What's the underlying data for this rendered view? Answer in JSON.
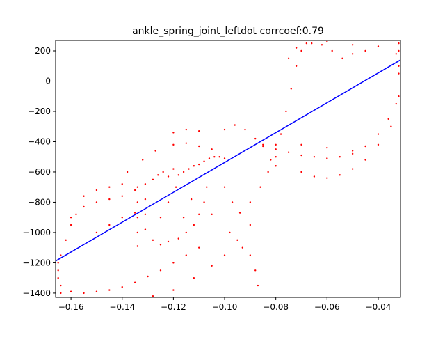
{
  "chart_data": {
    "type": "scatter",
    "title": "ankle_spring_joint_leftdot corrcoef:0.79",
    "xlim": [
      -0.166,
      -0.0313
    ],
    "ylim": [
      -1428,
      269
    ],
    "xticks": [
      {
        "value": -0.16,
        "label": "−0.16"
      },
      {
        "value": -0.14,
        "label": "−0.14"
      },
      {
        "value": -0.12,
        "label": "−0.12"
      },
      {
        "value": -0.1,
        "label": "−0.10"
      },
      {
        "value": -0.08,
        "label": "−0.08"
      },
      {
        "value": -0.06,
        "label": "−0.06"
      },
      {
        "value": -0.04,
        "label": "−0.04"
      }
    ],
    "yticks": [
      200,
      0,
      {
        "value": -200,
        "label": "−200"
      },
      {
        "value": -400,
        "label": "−400"
      },
      {
        "value": -600,
        "label": "−600"
      },
      {
        "value": -800,
        "label": "−800"
      },
      {
        "value": -1000,
        "label": "−1000"
      },
      {
        "value": -1200,
        "label": "−1200"
      },
      {
        "value": -1400,
        "label": "−1400"
      }
    ],
    "points": {
      "color": "#ff0000",
      "x": [
        -0.165,
        -0.165,
        -0.165,
        -0.164,
        -0.164,
        -0.16,
        -0.155,
        -0.15,
        -0.145,
        -0.14,
        -0.135,
        -0.13,
        -0.125,
        -0.12,
        -0.115,
        -0.11,
        -0.128,
        -0.12,
        -0.112,
        -0.105,
        -0.1,
        -0.095,
        -0.09,
        -0.164,
        -0.162,
        -0.16,
        -0.158,
        -0.155,
        -0.15,
        -0.145,
        -0.14,
        -0.135,
        -0.16,
        -0.155,
        -0.15,
        -0.145,
        -0.14,
        -0.15,
        -0.145,
        -0.14,
        -0.135,
        -0.138,
        -0.132,
        -0.127,
        -0.12,
        -0.115,
        -0.11,
        -0.105,
        -0.12,
        -0.115,
        -0.11,
        -0.134,
        -0.134,
        -0.134,
        -0.134,
        -0.134,
        -0.131,
        -0.131,
        -0.131,
        -0.131,
        -0.128,
        -0.126,
        -0.124,
        -0.122,
        -0.12,
        -0.118,
        -0.116,
        -0.114,
        -0.112,
        -0.11,
        -0.108,
        -0.106,
        -0.104,
        -0.102,
        -0.1,
        -0.128,
        -0.125,
        -0.122,
        -0.118,
        -0.115,
        -0.112,
        -0.11,
        -0.108,
        -0.107,
        -0.125,
        -0.122,
        -0.119,
        -0.116,
        -0.113,
        -0.1,
        -0.097,
        -0.094,
        -0.09,
        -0.086,
        -0.083,
        -0.08,
        -0.078,
        -0.076,
        -0.074,
        -0.072,
        -0.07,
        -0.068,
        -0.1,
        -0.096,
        -0.092,
        -0.088,
        -0.085,
        -0.082,
        -0.08,
        -0.105,
        -0.098,
        -0.093,
        -0.09,
        -0.088,
        -0.087,
        -0.066,
        -0.062,
        -0.058,
        -0.054,
        -0.05,
        -0.045,
        -0.04,
        -0.075,
        -0.072,
        -0.06,
        -0.05,
        -0.085,
        -0.08,
        -0.075,
        -0.07,
        -0.065,
        -0.06,
        -0.055,
        -0.05,
        -0.045,
        -0.04,
        -0.036,
        -0.033,
        -0.07,
        -0.065,
        -0.06,
        -0.055,
        -0.05,
        -0.045,
        -0.04,
        -0.035,
        -0.08,
        -0.07,
        -0.06,
        -0.05,
        -0.032,
        -0.032,
        -0.032,
        -0.032,
        -0.032,
        -0.033
      ],
      "y": [
        -1200,
        -1250,
        -1300,
        -1350,
        -1400,
        -1390,
        -1400,
        -1390,
        -1380,
        -1360,
        -1330,
        -1290,
        -1250,
        -1200,
        -1150,
        -1100,
        -1420,
        -1380,
        -1300,
        -1220,
        -1150,
        -1050,
        -950,
        -1150,
        -1050,
        -950,
        -880,
        -830,
        -800,
        -780,
        -760,
        -720,
        -900,
        -760,
        -720,
        -700,
        -680,
        -1000,
        -950,
        -900,
        -870,
        -600,
        -520,
        -460,
        -420,
        -410,
        -430,
        -450,
        -340,
        -320,
        -330,
        -700,
        -800,
        -900,
        -1000,
        -1090,
        -680,
        -780,
        -880,
        -980,
        -650,
        -620,
        -600,
        -630,
        -580,
        -620,
        -600,
        -580,
        -560,
        -550,
        -530,
        -510,
        -500,
        -500,
        -510,
        -1050,
        -1080,
        -1060,
        -1040,
        -1000,
        -950,
        -880,
        -800,
        -700,
        -900,
        -800,
        -700,
        -900,
        -780,
        -700,
        -800,
        -870,
        -800,
        -700,
        -600,
        -500,
        -350,
        -200,
        -50,
        100,
        200,
        250,
        -320,
        -290,
        -320,
        -380,
        -430,
        -520,
        -560,
        -880,
        -1000,
        -1100,
        -1150,
        -1250,
        -1350,
        250,
        240,
        200,
        150,
        180,
        200,
        230,
        150,
        220,
        260,
        240,
        -420,
        -450,
        -470,
        -490,
        -500,
        -510,
        -500,
        -480,
        -430,
        -350,
        -250,
        -150,
        -600,
        -630,
        -640,
        -620,
        -580,
        -520,
        -420,
        -300,
        -420,
        -420,
        -440,
        -460,
        250,
        200,
        100,
        50,
        -100,
        180
      ]
    },
    "fit_line": {
      "color": "#0000ff",
      "x": [
        -0.166,
        -0.0313
      ],
      "y": [
        -1188,
        140
      ]
    }
  }
}
